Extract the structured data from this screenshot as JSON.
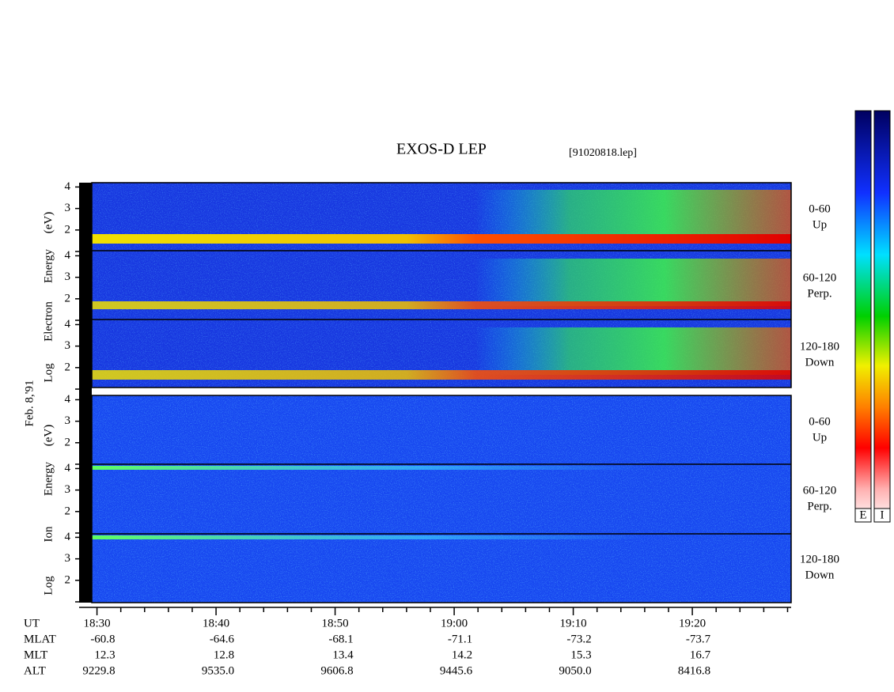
{
  "chart_data": {
    "type": "spectrogram",
    "title": "EXOS-D LEP",
    "file_label": "[91020818.lep]",
    "date_label": "Feb. 8,'91",
    "groups": [
      {
        "axis_label": [
          "Log",
          "Electron",
          "Energy",
          "(eV)"
        ],
        "panels": [
          {
            "angle": "0-60",
            "direction": "Up"
          },
          {
            "angle": "60-120",
            "direction": "Perp."
          },
          {
            "angle": "120-180",
            "direction": "Down"
          }
        ]
      },
      {
        "axis_label": [
          "Log",
          "Ion",
          "Energy",
          "(eV)"
        ],
        "panels": [
          {
            "angle": "0-60",
            "direction": "Up"
          },
          {
            "angle": "60-120",
            "direction": "Perp."
          },
          {
            "angle": "120-180",
            "direction": "Down"
          }
        ]
      }
    ],
    "ylim": [
      1,
      4.2
    ],
    "yticks": [
      2,
      3,
      4
    ],
    "xlim": [
      1108.5,
      1168.3
    ],
    "xticks": [
      {
        "value": 1110,
        "label": "18:30"
      },
      {
        "value": 1120,
        "label": "18:40"
      },
      {
        "value": 1130,
        "label": "18:50"
      },
      {
        "value": 1140,
        "label": "19:00"
      },
      {
        "value": 1150,
        "label": "19:10"
      },
      {
        "value": 1160,
        "label": "19:20"
      }
    ],
    "minor_xticks": [
      1112,
      1114,
      1116,
      1118,
      1122,
      1124,
      1126,
      1128,
      1132,
      1134,
      1136,
      1138,
      1142,
      1144,
      1146,
      1148,
      1152,
      1154,
      1156,
      1158,
      1162,
      1164,
      1166,
      1168
    ],
    "ephemeris": [
      {
        "name": "UT"
      },
      {
        "name": "MLAT",
        "values": [
          "-60.8",
          "-64.6",
          "-68.1",
          "-71.1",
          "-73.2",
          "-73.7"
        ]
      },
      {
        "name": "MLT",
        "values": [
          "12.3",
          "12.8",
          "13.4",
          "14.2",
          "15.3",
          "16.7"
        ]
      },
      {
        "name": "ALT",
        "values": [
          "9229.8",
          "9535.0",
          "9606.8",
          "9445.6",
          "9050.0",
          "8416.8"
        ]
      }
    ],
    "colorbars": [
      "E",
      "I"
    ]
  }
}
